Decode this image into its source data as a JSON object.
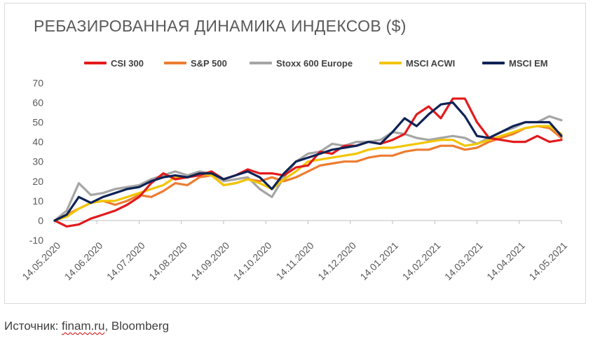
{
  "chart_data": {
    "type": "line",
    "title": "РЕБАЗИРОВАННАЯ ДИНАМИКА ИНДЕКСОВ ($)",
    "xlabel": "",
    "ylabel": "",
    "ylim": [
      -10,
      70
    ],
    "yticks": [
      -10,
      0,
      10,
      20,
      30,
      40,
      50,
      60,
      70
    ],
    "x_ticks": [
      "14.05.2020",
      "14.06.2020",
      "14.07.2020",
      "14.08.2020",
      "14.09.2020",
      "14.10.2020",
      "14.11.2020",
      "14.12.2020",
      "14.01.2021",
      "14.02.2021",
      "14.03.2021",
      "14.04.2021",
      "14.05.2021"
    ],
    "grid": false,
    "legend_position": "top",
    "series": [
      {
        "name": "CSI 300",
        "color": "#e31a1c",
        "values": [
          0,
          -3,
          -2,
          1,
          3,
          5,
          8,
          12,
          19,
          24,
          21,
          22,
          23,
          25,
          21,
          23,
          26,
          24,
          24,
          23,
          27,
          28,
          35,
          34,
          38,
          38,
          40,
          39,
          41,
          44,
          54,
          58,
          52,
          62,
          62,
          50,
          42,
          41,
          40,
          40,
          43,
          40,
          41
        ]
      },
      {
        "name": "S&P 500",
        "color": "#ed7d31",
        "values": [
          0,
          3,
          6,
          9,
          10,
          8,
          10,
          13,
          12,
          15,
          19,
          18,
          22,
          23,
          18,
          19,
          21,
          20,
          22,
          20,
          22,
          25,
          28,
          29,
          30,
          30,
          32,
          33,
          33,
          35,
          36,
          36,
          38,
          38,
          36,
          37,
          40,
          42,
          44,
          47,
          48,
          47,
          42
        ]
      },
      {
        "name": "Stoxx 600 Europe",
        "color": "#a5a5a5",
        "values": [
          0,
          5,
          19,
          13,
          14,
          16,
          17,
          18,
          21,
          23,
          25,
          23,
          25,
          24,
          20,
          21,
          22,
          16,
          12,
          22,
          30,
          34,
          35,
          39,
          38,
          40,
          40,
          41,
          45,
          44,
          42,
          41,
          42,
          43,
          42,
          39,
          42,
          45,
          47,
          50,
          50,
          53,
          51
        ]
      },
      {
        "name": "MSCI ACWI",
        "color": "#f2c500",
        "values": [
          0,
          2,
          6,
          9,
          10,
          10,
          12,
          14,
          16,
          18,
          22,
          22,
          24,
          23,
          18,
          19,
          21,
          19,
          16,
          21,
          25,
          30,
          31,
          32,
          33,
          34,
          36,
          37,
          37,
          38,
          39,
          40,
          41,
          41,
          38,
          39,
          41,
          43,
          45,
          47,
          48,
          48,
          44
        ]
      },
      {
        "name": "MSCI EM",
        "color": "#0e2356",
        "values": [
          0,
          3,
          12,
          9,
          12,
          14,
          16,
          17,
          20,
          22,
          23,
          22,
          24,
          24,
          21,
          23,
          25,
          22,
          16,
          24,
          30,
          32,
          34,
          36,
          37,
          38,
          40,
          39,
          45,
          52,
          48,
          54,
          59,
          60,
          53,
          43,
          42,
          45,
          48,
          50,
          50,
          50,
          43
        ]
      }
    ]
  },
  "source": {
    "prefix": "Источник: ",
    "link": "finam.ru",
    "suffix": ", Bloomberg"
  }
}
